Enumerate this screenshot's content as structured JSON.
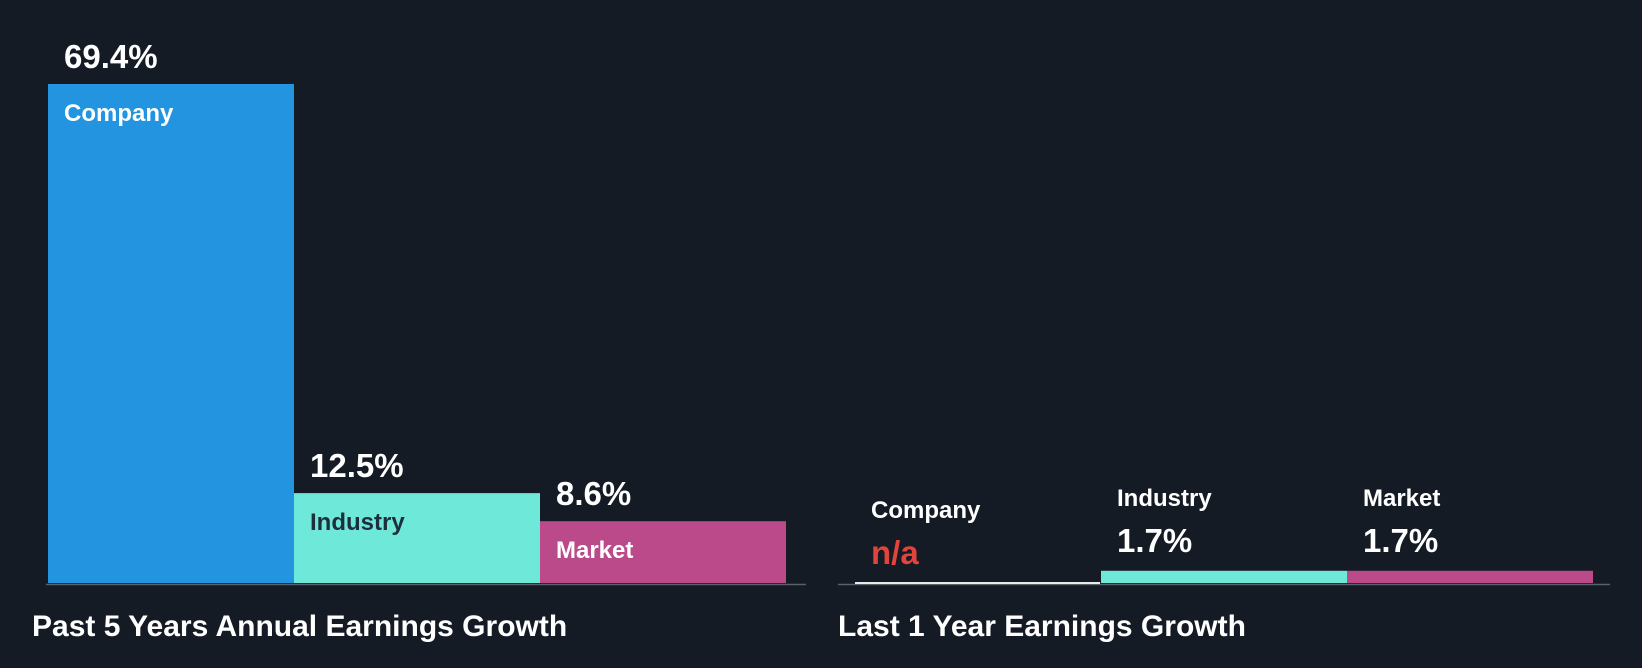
{
  "chart_data": [
    {
      "type": "bar",
      "title": "Past 5 Years Annual Earnings Growth",
      "categories": [
        "Company",
        "Industry",
        "Market"
      ],
      "values": [
        69.4,
        12.5,
        8.6
      ],
      "value_labels": [
        "69.4%",
        "12.5%",
        "8.6%"
      ],
      "unit": "%",
      "ylim": [
        0,
        69.4
      ],
      "colors": [
        "#2394e0",
        "#6ee8d8",
        "#bb4a8a"
      ]
    },
    {
      "type": "bar",
      "title": "Last 1 Year Earnings Growth",
      "categories": [
        "Company",
        "Industry",
        "Market"
      ],
      "values": [
        null,
        1.7,
        1.7
      ],
      "value_labels": [
        "n/a",
        "1.7%",
        "1.7%"
      ],
      "unit": "%",
      "ylim": [
        0,
        69.4
      ],
      "colors": [
        "#2394e0",
        "#6ee8d8",
        "#bb4a8a"
      ],
      "na_color": "#e0443c"
    }
  ]
}
